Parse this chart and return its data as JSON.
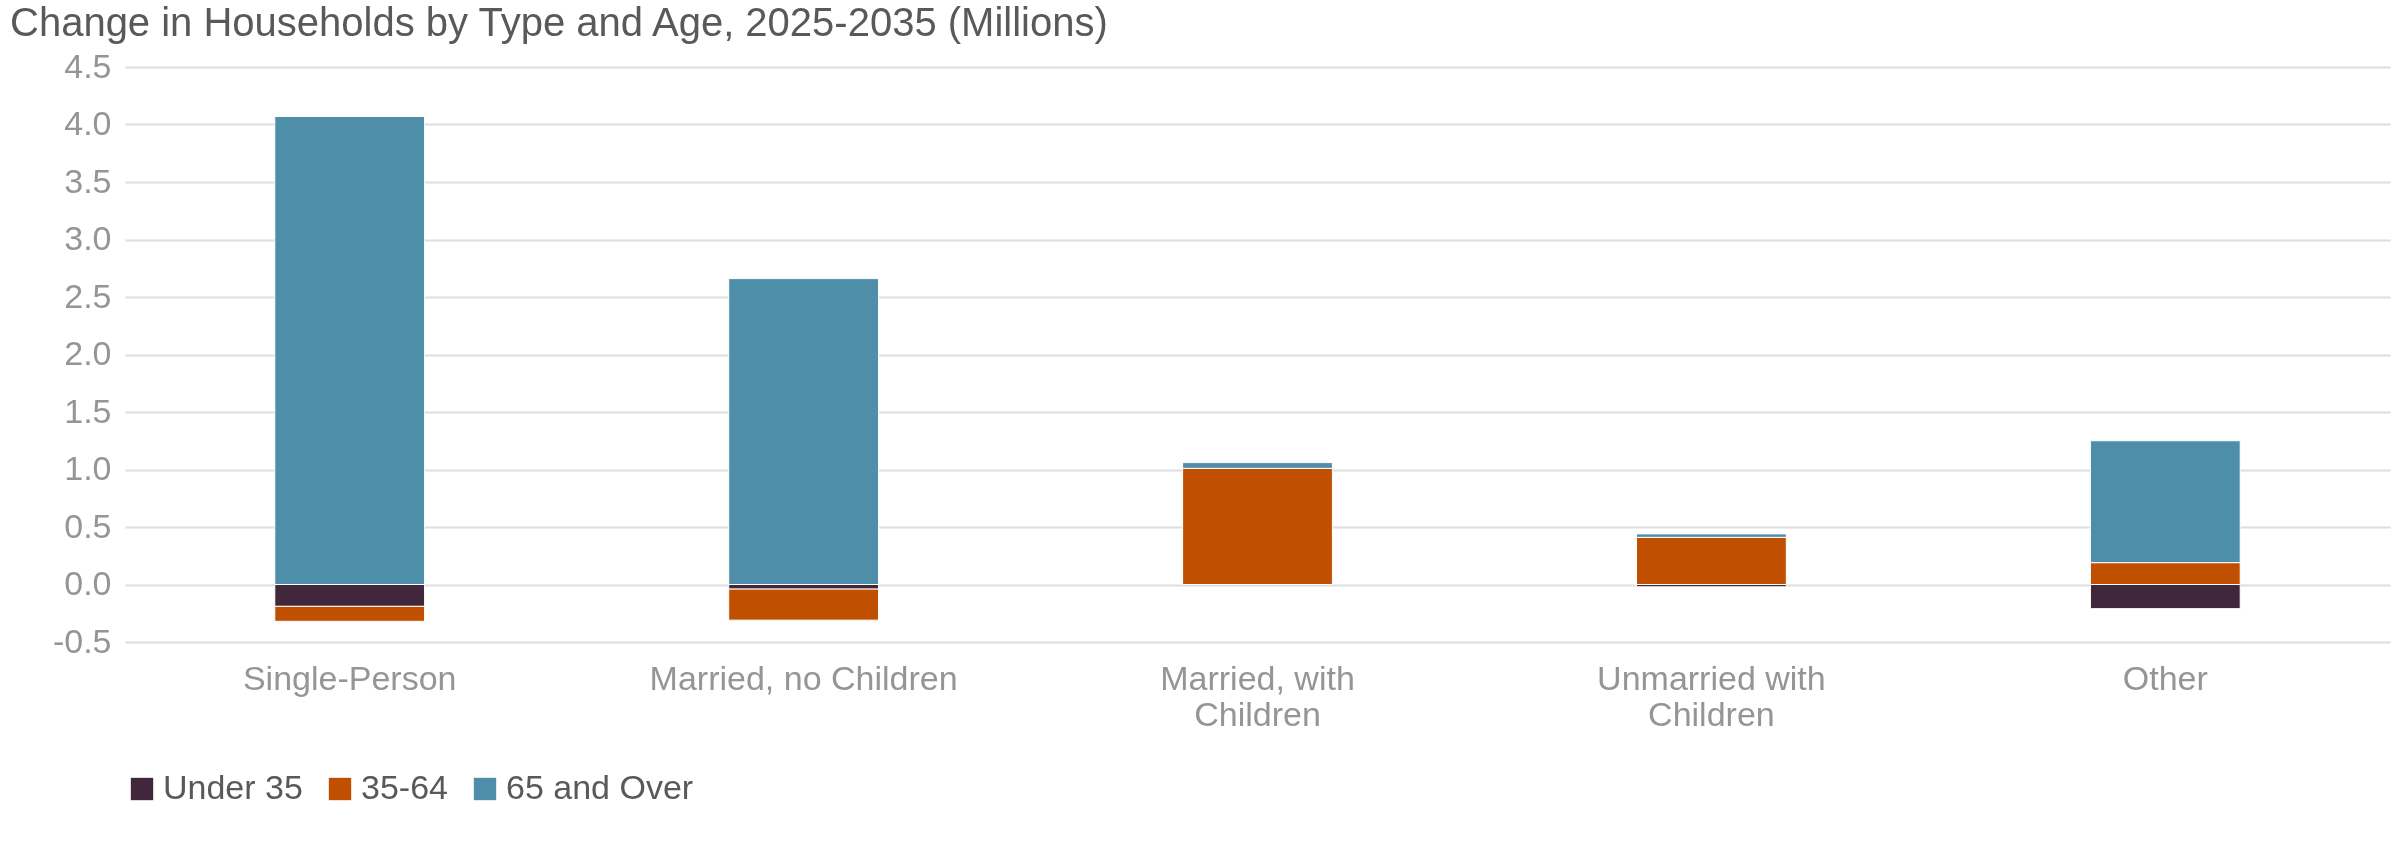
{
  "chart_data": {
    "type": "bar",
    "title": "Change in Households by Type and Age, 2025-2035 (Millions)",
    "categories": [
      "Single-Person",
      "Married, no Children",
      "Married, with Children",
      "Unmarried with Children",
      "Other"
    ],
    "series": [
      {
        "name": "Under 35",
        "color": "#40273b",
        "values": [
          -0.19,
          -0.04,
          0,
          -0.02,
          -0.21
        ]
      },
      {
        "name": "35-64",
        "color": "#c04f00",
        "values": [
          -0.13,
          -0.27,
          1.01,
          0.41,
          0.19
        ]
      },
      {
        "name": "65 and Over",
        "color": "#4f8ea8",
        "values": [
          4.07,
          2.66,
          0.05,
          0.03,
          1.06
        ]
      }
    ],
    "stacked": true,
    "ylim": [
      -0.5,
      4.5
    ],
    "yticks": [
      -0.5,
      {
        "value": 0,
        "label": "0.0"
      },
      0.5,
      {
        "value": 1,
        "label": "1.0"
      },
      1.5,
      {
        "value": 2,
        "label": "2.0"
      },
      2.5,
      {
        "value": 3,
        "label": "3.0"
      },
      3.5,
      {
        "value": 4,
        "label": "4.0"
      },
      4.5
    ],
    "grid": "y",
    "legend": "bottom"
  }
}
